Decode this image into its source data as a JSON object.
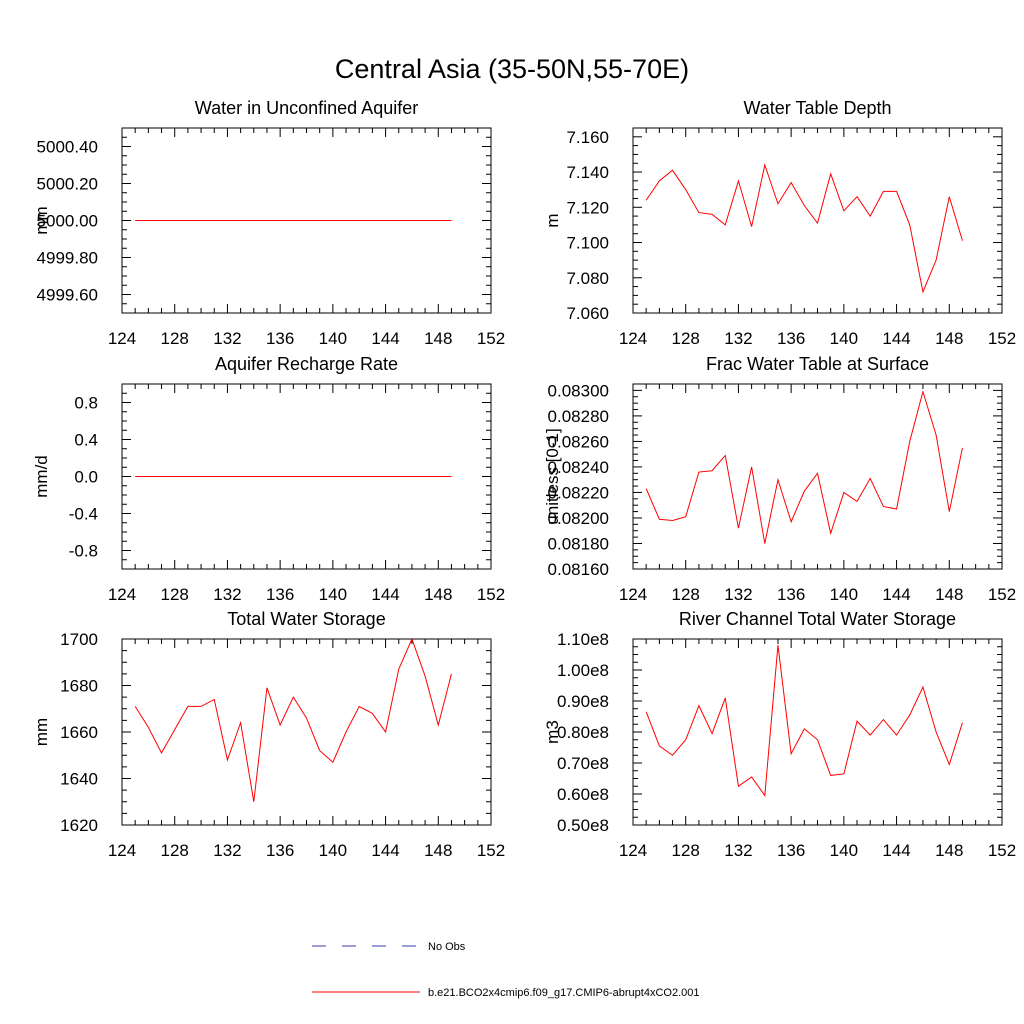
{
  "figure": {
    "title": "Central Asia (35-50N,55-70E)"
  },
  "legend": {
    "entries": [
      {
        "label": "No Obs",
        "style": "dashed",
        "color": "#3a3ab0"
      },
      {
        "label": "b.e21.BCO2x4cmip6.f09_g17.CMIP6-abrupt4xCO2.001",
        "style": "solid",
        "color": "#ff0000"
      }
    ]
  },
  "chart_data": [
    {
      "type": "line",
      "title": "Water in Unconfined Aquifer",
      "ylabel": "mm",
      "xlim": [
        124,
        152
      ],
      "ylim": [
        4999.5,
        5000.5
      ],
      "xticks": [
        124,
        128,
        132,
        136,
        140,
        144,
        148,
        152
      ],
      "yticks": [
        4999.6,
        4999.8,
        5000.0,
        5000.2,
        5000.4
      ],
      "ytick_labels": [
        "4999.60",
        "4999.80",
        "5000.00",
        "5000.20",
        "5000.40"
      ],
      "x": [
        125,
        126,
        127,
        128,
        129,
        130,
        131,
        132,
        133,
        134,
        135,
        136,
        137,
        138,
        139,
        140,
        141,
        142,
        143,
        144,
        145,
        146,
        147,
        148,
        149
      ],
      "series": [
        {
          "color": "#ff0000",
          "values": [
            5000,
            5000,
            5000,
            5000,
            5000,
            5000,
            5000,
            5000,
            5000,
            5000,
            5000,
            5000,
            5000,
            5000,
            5000,
            5000,
            5000,
            5000,
            5000,
            5000,
            5000,
            5000,
            5000,
            5000,
            5000
          ]
        }
      ]
    },
    {
      "type": "line",
      "title": "Water Table Depth",
      "ylabel": "m",
      "xlim": [
        124,
        152
      ],
      "ylim": [
        7.06,
        7.165
      ],
      "xticks": [
        124,
        128,
        132,
        136,
        140,
        144,
        148,
        152
      ],
      "yticks": [
        7.06,
        7.08,
        7.1,
        7.12,
        7.14,
        7.16
      ],
      "ytick_labels": [
        "7.060",
        "7.080",
        "7.100",
        "7.120",
        "7.140",
        "7.160"
      ],
      "x": [
        125,
        126,
        127,
        128,
        129,
        130,
        131,
        132,
        133,
        134,
        135,
        136,
        137,
        138,
        139,
        140,
        141,
        142,
        143,
        144,
        145,
        146,
        147,
        148,
        149
      ],
      "series": [
        {
          "color": "#ff0000",
          "values": [
            7.124,
            7.135,
            7.141,
            7.13,
            7.117,
            7.116,
            7.11,
            7.135,
            7.109,
            7.144,
            7.122,
            7.134,
            7.121,
            7.111,
            7.139,
            7.118,
            7.126,
            7.115,
            7.129,
            7.129,
            7.11,
            7.072,
            7.09,
            7.126,
            7.101
          ]
        }
      ]
    },
    {
      "type": "line",
      "title": "Aquifer Recharge Rate",
      "ylabel": "mm/d",
      "xlim": [
        124,
        152
      ],
      "ylim": [
        -1.0,
        1.0
      ],
      "xticks": [
        124,
        128,
        132,
        136,
        140,
        144,
        148,
        152
      ],
      "yticks": [
        -0.8,
        -0.4,
        0.0,
        0.4,
        0.8
      ],
      "ytick_labels": [
        "-0.8",
        "-0.4",
        "0.0",
        "0.4",
        "0.8"
      ],
      "x": [
        125,
        126,
        127,
        128,
        129,
        130,
        131,
        132,
        133,
        134,
        135,
        136,
        137,
        138,
        139,
        140,
        141,
        142,
        143,
        144,
        145,
        146,
        147,
        148,
        149
      ],
      "series": [
        {
          "color": "#ff0000",
          "values": [
            0,
            0,
            0,
            0,
            0,
            0,
            0,
            0,
            0,
            0,
            0,
            0,
            0,
            0,
            0,
            0,
            0,
            0,
            0,
            0,
            0,
            0,
            0,
            0,
            0
          ]
        }
      ]
    },
    {
      "type": "line",
      "title": "Frac Water Table at Surface",
      "ylabel": "unitless [0-1]",
      "xlim": [
        124,
        152
      ],
      "ylim": [
        0.0816,
        0.08305
      ],
      "xticks": [
        124,
        128,
        132,
        136,
        140,
        144,
        148,
        152
      ],
      "yticks": [
        0.0816,
        0.0818,
        0.082,
        0.0822,
        0.0824,
        0.0826,
        0.0828,
        0.083
      ],
      "ytick_labels": [
        "0.08160",
        "0.08180",
        "0.08200",
        "0.08220",
        "0.08240",
        "0.08260",
        "0.08280",
        "0.08300"
      ],
      "x": [
        125,
        126,
        127,
        128,
        129,
        130,
        131,
        132,
        133,
        134,
        135,
        136,
        137,
        138,
        139,
        140,
        141,
        142,
        143,
        144,
        145,
        146,
        147,
        148,
        149
      ],
      "series": [
        {
          "color": "#ff0000",
          "values": [
            0.08223,
            0.08199,
            0.08198,
            0.08201,
            0.08236,
            0.08237,
            0.08249,
            0.08192,
            0.0824,
            0.0818,
            0.0823,
            0.08197,
            0.08221,
            0.08235,
            0.08188,
            0.0822,
            0.08213,
            0.08231,
            0.08209,
            0.08207,
            0.0826,
            0.08299,
            0.08265,
            0.08205,
            0.08255
          ]
        }
      ]
    },
    {
      "type": "line",
      "title": "Total Water Storage",
      "ylabel": "mm",
      "xlim": [
        124,
        152
      ],
      "ylim": [
        1620,
        1700
      ],
      "xticks": [
        124,
        128,
        132,
        136,
        140,
        144,
        148,
        152
      ],
      "yticks": [
        1620,
        1640,
        1660,
        1680,
        1700
      ],
      "ytick_labels": [
        "1620",
        "1640",
        "1660",
        "1680",
        "1700"
      ],
      "x": [
        125,
        126,
        127,
        128,
        129,
        130,
        131,
        132,
        133,
        134,
        135,
        136,
        137,
        138,
        139,
        140,
        141,
        142,
        143,
        144,
        145,
        146,
        147,
        148,
        149
      ],
      "series": [
        {
          "color": "#ff0000",
          "values": [
            1671,
            1662,
            1651,
            1661,
            1671,
            1671,
            1674,
            1648,
            1664,
            1630,
            1679,
            1663,
            1675,
            1666,
            1652,
            1647,
            1660,
            1671,
            1668,
            1660,
            1687,
            1700,
            1684,
            1663,
            1685
          ]
        }
      ]
    },
    {
      "type": "line",
      "title": "River Channel Total Water Storage",
      "ylabel": "m3",
      "xlim": [
        124,
        152
      ],
      "ylim": [
        50000000,
        110000000
      ],
      "xticks": [
        124,
        128,
        132,
        136,
        140,
        144,
        148,
        152
      ],
      "yticks": [
        50000000,
        60000000,
        70000000,
        80000000,
        90000000,
        100000000,
        110000000
      ],
      "ytick_labels": [
        "0.50e8",
        "0.60e8",
        "0.70e8",
        "0.80e8",
        "0.90e8",
        "1.00e8",
        "1.10e8"
      ],
      "x": [
        125,
        126,
        127,
        128,
        129,
        130,
        131,
        132,
        133,
        134,
        135,
        136,
        137,
        138,
        139,
        140,
        141,
        142,
        143,
        144,
        145,
        146,
        147,
        148,
        149
      ],
      "series": [
        {
          "color": "#ff0000",
          "values": [
            86500000,
            75500000,
            72500000,
            77500000,
            88500000,
            79500000,
            91000000,
            62500000,
            65500000,
            59500000,
            108000000,
            73000000,
            81000000,
            77500000,
            66000000,
            66500000,
            83500000,
            79000000,
            84000000,
            79000000,
            85500000,
            94500000,
            80000000,
            69500000,
            83000000
          ]
        }
      ]
    }
  ]
}
